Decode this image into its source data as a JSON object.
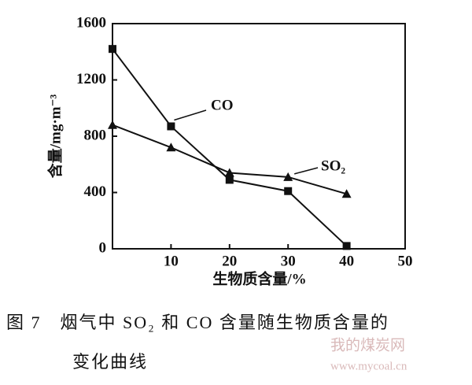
{
  "chart_data": {
    "type": "line",
    "x_label": "生物质含量/%",
    "y_label": "含量/mg·m⁻³",
    "caption": [
      "图 7　烟气中 SO₂ 和 CO 含量随生物质含量的",
      "变化曲线"
    ],
    "x": [
      0,
      10,
      20,
      30,
      40
    ],
    "series": [
      {
        "name": "CO",
        "color": "#111111",
        "marker": "square",
        "values": [
          1420,
          870,
          490,
          410,
          20
        ]
      },
      {
        "name": "SO₂",
        "color": "#111111",
        "marker": "triangle",
        "values": [
          880,
          720,
          540,
          510,
          390
        ]
      }
    ],
    "xlim": [
      0,
      50
    ],
    "xticks": [
      10,
      20,
      30,
      40,
      50
    ],
    "ylim": [
      0,
      1600
    ],
    "yticks": [
      0,
      400,
      800,
      1200,
      1600
    ],
    "grid": false
  },
  "watermark": [
    "我的煤炭网",
    "www.mycoal.cn"
  ]
}
